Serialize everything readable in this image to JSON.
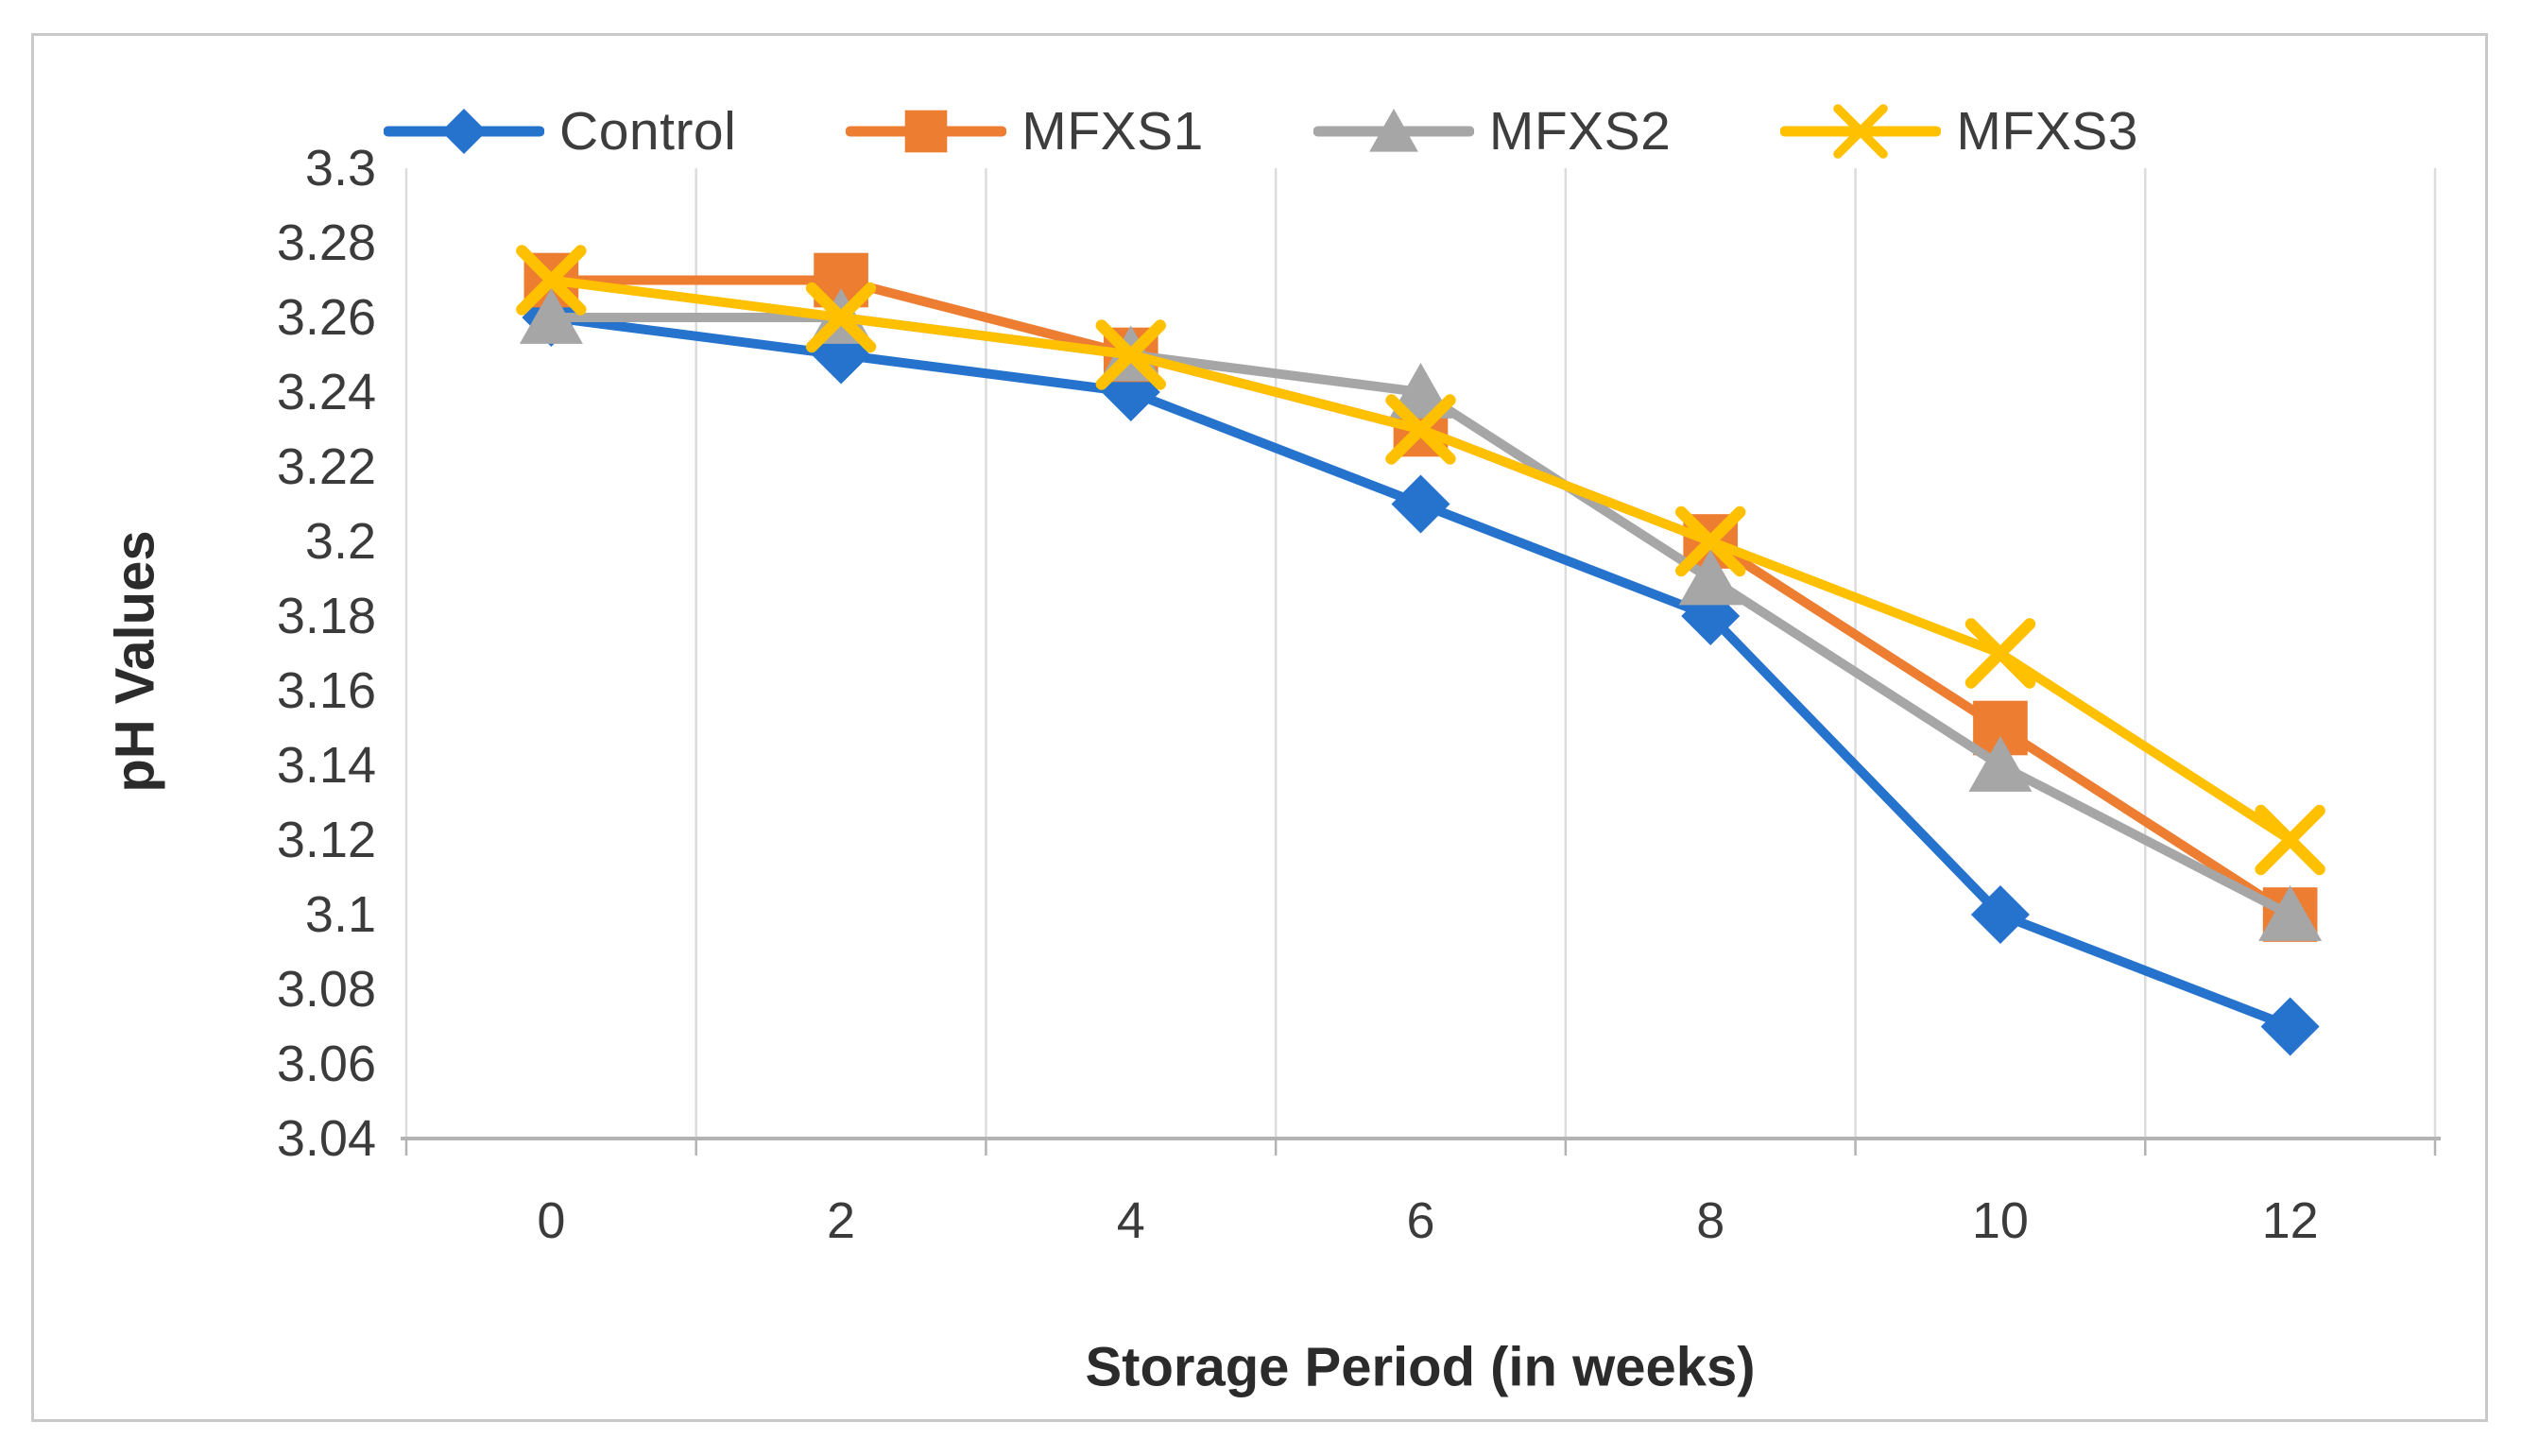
{
  "chart_data": {
    "type": "line",
    "title": "",
    "xlabel": "Storage Period (in weeks)",
    "ylabel": "pH Values",
    "categories": [
      "0",
      "2",
      "4",
      "6",
      "8",
      "10",
      "12"
    ],
    "ylim": [
      3.04,
      3.3
    ],
    "ytick_step": 0.02,
    "grid": "vertical-only",
    "legend_position": "top",
    "gridline_color": "#dcdcdc",
    "axis_line_color": "#b3b3b3",
    "tick_label_color": "#3b3b3b",
    "series": [
      {
        "name": "Control",
        "marker": "diamond",
        "color": "#2573CD",
        "values": [
          3.26,
          3.25,
          3.24,
          3.21,
          3.18,
          3.1,
          3.07
        ]
      },
      {
        "name": "MFXS1",
        "marker": "square",
        "color": "#ED7D31",
        "values": [
          3.27,
          3.27,
          3.25,
          3.23,
          3.2,
          3.15,
          3.1
        ]
      },
      {
        "name": "MFXS2",
        "marker": "triangle",
        "color": "#A6A6A6",
        "values": [
          3.26,
          3.26,
          3.25,
          3.24,
          3.19,
          3.14,
          3.1
        ]
      },
      {
        "name": "MFXS3",
        "marker": "x",
        "color": "#FFC000",
        "values": [
          3.27,
          3.26,
          3.25,
          3.23,
          3.2,
          3.17,
          3.12
        ]
      }
    ]
  }
}
